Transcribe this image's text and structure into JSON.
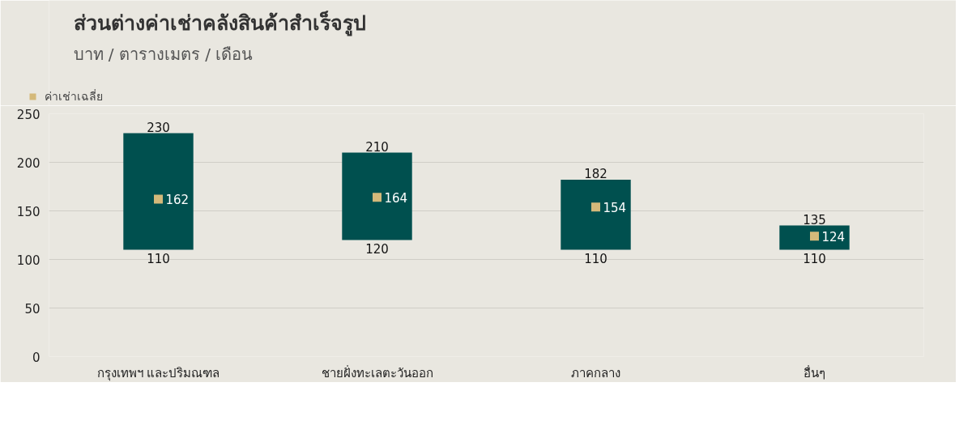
{
  "chart_data": {
    "type": "bar",
    "title": "ส่วนต่างค่าเช่าคลังสินค้าสำเร็จรูป",
    "subtitle": "บาท / ตารางเมตร / เดือน",
    "categories": [
      "กรุงเทพฯ และปริมณฑล",
      "ชายฝั่งทะเลตะวันออก",
      "ภาคกลาง",
      "อื่นๆ"
    ],
    "series": [
      {
        "color": "#00504f",
        "base": [
          110,
          120,
          110,
          110
        ],
        "values": [
          120,
          90,
          72,
          25
        ],
        "value_labels": [
          "230",
          "210",
          "182",
          "135"
        ]
      },
      {
        "type": "scatter",
        "name": "ค่าเช่าเฉลี่ย",
        "color": "#d4b97a",
        "marker": "square",
        "values": [
          162,
          164,
          154,
          124
        ],
        "value_labels": [
          "162",
          "164",
          "154",
          "124"
        ]
      }
    ],
    "annotations": [
      {
        "text": "110",
        "x": "กรุงเทพฯ และปริมณฑล",
        "y": 110
      },
      {
        "text": "120",
        "x": "ชายฝั่งทะเลตะวันออก",
        "y": 120
      },
      {
        "text": "110",
        "x": "ภาคกลาง",
        "y": 110
      },
      {
        "text": "110",
        "x": "อื่นๆ",
        "y": 110
      }
    ],
    "ylim": [
      0,
      250
    ],
    "yticks": [
      0,
      50,
      100,
      150,
      200,
      250
    ],
    "grid": "y",
    "legend": "top left"
  }
}
